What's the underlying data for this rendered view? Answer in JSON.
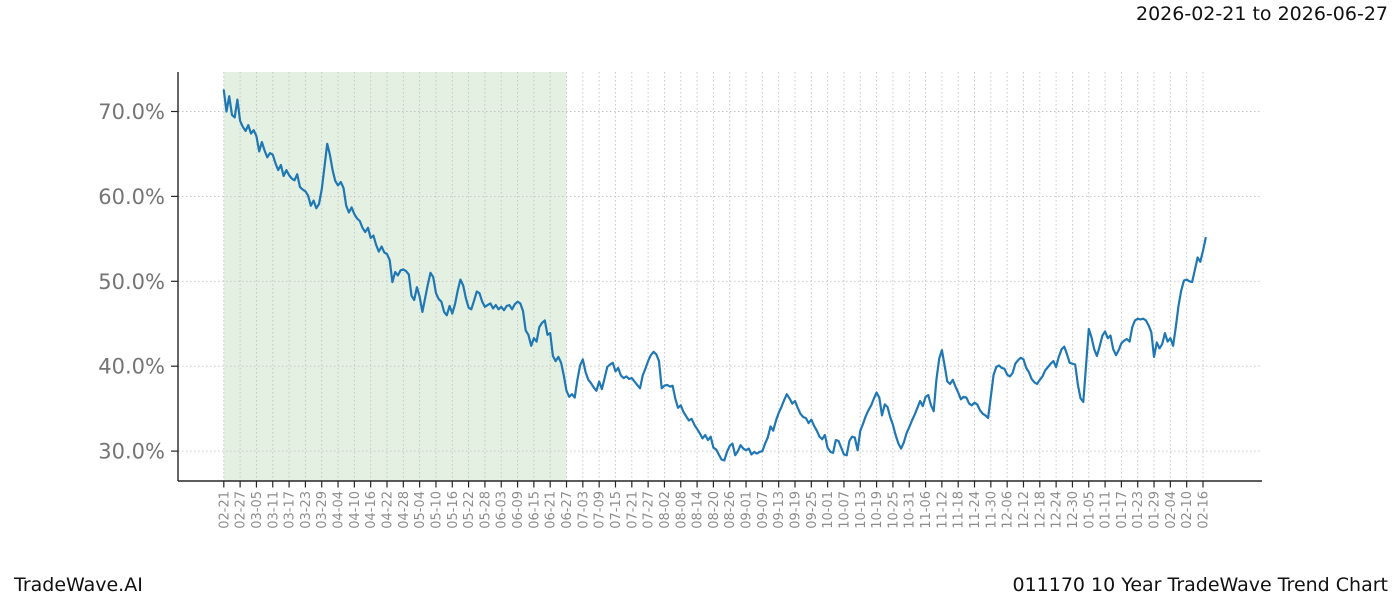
{
  "header": {
    "title": "2026-02-21 to 2026-06-27"
  },
  "footer": {
    "brand": "TradeWave.AI",
    "chart_label": "011170 10 Year TradeWave Trend Chart"
  },
  "chart_data": {
    "type": "line",
    "title": "2026-02-21 to 2026-06-27",
    "xlabel": "",
    "ylabel": "",
    "grid": true,
    "legend": "none",
    "ylim": [
      26.5,
      74.6
    ],
    "y_ticks": [
      30,
      40,
      50,
      60,
      70
    ],
    "y_tick_labels": [
      "30.0%",
      "40.0%",
      "50.0%",
      "60.0%",
      "70.0%"
    ],
    "x_tick_interval_days": 6,
    "x_tick_labels": [
      "02-21",
      "02-27",
      "03-05",
      "03-11",
      "03-17",
      "03-23",
      "03-29",
      "04-04",
      "04-10",
      "04-16",
      "04-22",
      "04-28",
      "05-04",
      "05-10",
      "05-16",
      "05-22",
      "05-28",
      "06-03",
      "06-09",
      "06-15",
      "06-21",
      "06-27",
      "07-03",
      "07-09",
      "07-15",
      "07-21",
      "07-27",
      "08-02",
      "08-08",
      "08-14",
      "08-20",
      "08-26",
      "09-01",
      "09-07",
      "09-13",
      "09-19",
      "09-25",
      "10-01",
      "10-07",
      "10-13",
      "10-19",
      "10-25",
      "10-31",
      "11-06",
      "11-12",
      "11-18",
      "11-24",
      "11-30",
      "12-06",
      "12-12",
      "12-18",
      "12-24",
      "12-30",
      "01-05",
      "01-11",
      "01-17",
      "01-23",
      "01-29",
      "02-04",
      "02-10",
      "02-16"
    ],
    "highlight_region": {
      "start_day": 0,
      "end_day": 126,
      "color": "rgba(134,188,121,0.22)"
    },
    "colors": {
      "line": "#1f77b4",
      "grid": "#c3c3c3",
      "spine": "#262626",
      "x_tick_label": "#8c8c8c",
      "y_tick_label": "#757575",
      "text": "#111111"
    },
    "series": [
      {
        "name": "trend",
        "start_day": 0,
        "step_days": 1,
        "unit": "%",
        "values": [
          72.5,
          70.0,
          71.8,
          69.6,
          69.3,
          71.4,
          68.9,
          68.2,
          67.7,
          68.4,
          67.4,
          67.8,
          67.1,
          65.3,
          66.4,
          65.4,
          64.6,
          65.1,
          64.9,
          63.9,
          63.1,
          63.7,
          62.4,
          63.1,
          62.5,
          62.1,
          61.9,
          62.6,
          61.1,
          60.8,
          60.6,
          60.1,
          58.9,
          59.5,
          58.6,
          59.1,
          60.8,
          63.4,
          66.2,
          64.9,
          63.1,
          61.8,
          61.3,
          61.7,
          61.0,
          58.9,
          58.1,
          58.7,
          57.9,
          57.4,
          57.1,
          56.3,
          55.8,
          56.3,
          55.1,
          55.4,
          54.3,
          53.5,
          54.1,
          53.4,
          53.2,
          52.5,
          49.9,
          51.1,
          50.7,
          51.3,
          51.4,
          51.2,
          50.8,
          48.3,
          47.8,
          49.3,
          48.2,
          46.4,
          48.0,
          49.6,
          51.0,
          50.5,
          48.6,
          47.9,
          47.6,
          46.4,
          46.0,
          47.1,
          46.2,
          47.3,
          48.9,
          50.2,
          49.5,
          48.0,
          46.9,
          46.7,
          47.7,
          48.8,
          48.6,
          47.6,
          47.0,
          47.2,
          47.4,
          46.8,
          47.2,
          46.7,
          47.0,
          46.6,
          47.1,
          47.2,
          46.7,
          47.3,
          47.6,
          47.4,
          46.5,
          44.2,
          43.7,
          42.4,
          43.3,
          42.9,
          44.6,
          45.1,
          45.4,
          43.7,
          43.9,
          41.2,
          40.6,
          41.1,
          40.4,
          38.9,
          37.1,
          36.4,
          36.7,
          36.3,
          38.4,
          40.1,
          40.8,
          39.3,
          38.4,
          38.0,
          37.5,
          37.1,
          38.2,
          37.3,
          38.6,
          39.9,
          40.2,
          40.4,
          39.4,
          39.8,
          38.9,
          38.6,
          38.8,
          38.5,
          38.6,
          38.2,
          37.8,
          37.4,
          38.9,
          39.7,
          40.6,
          41.3,
          41.7,
          41.4,
          40.6,
          37.4,
          37.7,
          37.8,
          37.6,
          37.7,
          36.2,
          35.1,
          35.4,
          34.6,
          34.1,
          33.6,
          33.8,
          33.1,
          32.6,
          32.1,
          31.5,
          31.9,
          31.3,
          31.7,
          30.4,
          30.2,
          29.6,
          29.0,
          28.9,
          29.9,
          30.6,
          30.9,
          29.5,
          30.0,
          30.7,
          30.3,
          30.1,
          30.3,
          29.6,
          29.9,
          29.7,
          29.9,
          30.0,
          30.9,
          31.6,
          32.9,
          32.4,
          33.6,
          34.5,
          35.2,
          36.0,
          36.7,
          36.2,
          35.6,
          35.9,
          35.1,
          34.4,
          34.0,
          33.9,
          33.3,
          33.7,
          33.0,
          32.4,
          31.7,
          31.4,
          31.9,
          30.4,
          29.9,
          29.8,
          31.3,
          31.2,
          30.4,
          29.6,
          29.5,
          31.2,
          31.7,
          31.6,
          30.1,
          32.4,
          33.2,
          34.1,
          34.8,
          35.4,
          36.2,
          36.9,
          36.3,
          34.2,
          35.5,
          35.2,
          34.0,
          33.1,
          31.9,
          30.9,
          30.3,
          31.0,
          32.1,
          32.8,
          33.6,
          34.3,
          35.1,
          35.9,
          35.3,
          36.4,
          36.6,
          35.4,
          34.7,
          38.4,
          40.9,
          41.9,
          40.1,
          38.2,
          37.9,
          38.4,
          37.6,
          36.9,
          36.1,
          36.4,
          36.3,
          35.6,
          35.4,
          35.7,
          35.5,
          34.8,
          34.4,
          34.2,
          33.9,
          36.4,
          39.0,
          39.9,
          40.1,
          39.8,
          39.7,
          39.0,
          38.8,
          39.2,
          40.3,
          40.7,
          41.0,
          40.8,
          39.8,
          39.3,
          38.5,
          38.1,
          37.9,
          38.4,
          38.8,
          39.5,
          39.9,
          40.3,
          40.6,
          39.9,
          41.1,
          42.0,
          42.3,
          41.4,
          40.4,
          40.3,
          40.2,
          37.8,
          36.2,
          35.8,
          40.0,
          44.4,
          43.4,
          42.0,
          41.2,
          42.3,
          43.6,
          44.1,
          43.3,
          43.6,
          42.0,
          41.3,
          41.9,
          42.7,
          43.0,
          43.2,
          42.9,
          44.6,
          45.4,
          45.6,
          45.5,
          45.6,
          45.4,
          44.8,
          44.0,
          41.1,
          42.8,
          42.1,
          42.6,
          43.9,
          42.9,
          43.3,
          42.4,
          44.6,
          47.1,
          48.9,
          50.1,
          50.2,
          50.0,
          49.9,
          51.3,
          52.8,
          52.3,
          53.6,
          55.1
        ]
      }
    ]
  }
}
